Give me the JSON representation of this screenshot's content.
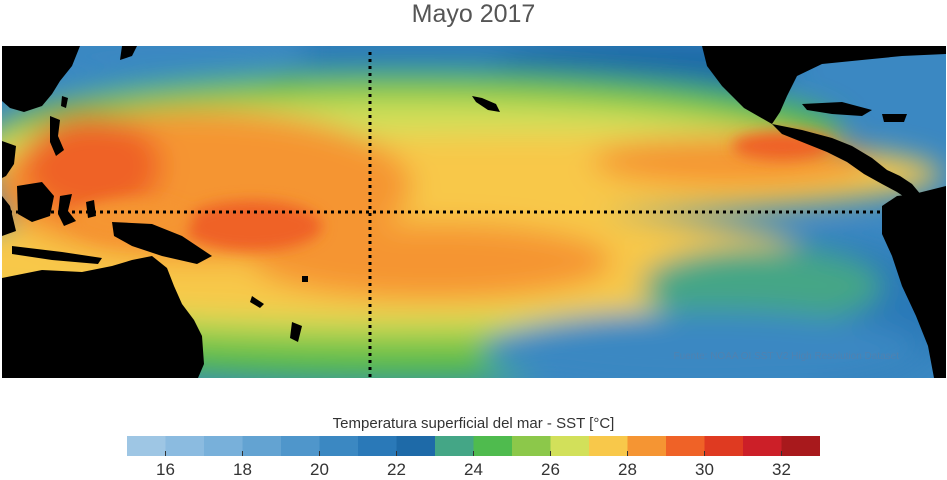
{
  "title": "Mayo 2017",
  "credit": "Fuente: NOAA OI SST V2 High Resolution Dataset",
  "colorbar": {
    "title": "Temperatura superficial del mar - SST  [°C]",
    "min": 15,
    "max": 33,
    "step": 1,
    "colors": [
      "#9ec6e4",
      "#8bbbe0",
      "#78b0da",
      "#63a3d2",
      "#4f96cb",
      "#3b88c2",
      "#2a79b8",
      "#1e6aa8",
      "#44a686",
      "#4fbb4e",
      "#8cc84a",
      "#d2e05a",
      "#f8c84a",
      "#f59533",
      "#ef6227",
      "#df3a21",
      "#cc1f28",
      "#a8191c"
    ],
    "tick_labels": [
      "16",
      "18",
      "20",
      "22",
      "24",
      "26",
      "28",
      "30",
      "32"
    ],
    "tick_values": [
      16,
      18,
      20,
      22,
      24,
      26,
      28,
      30,
      32
    ]
  }
}
